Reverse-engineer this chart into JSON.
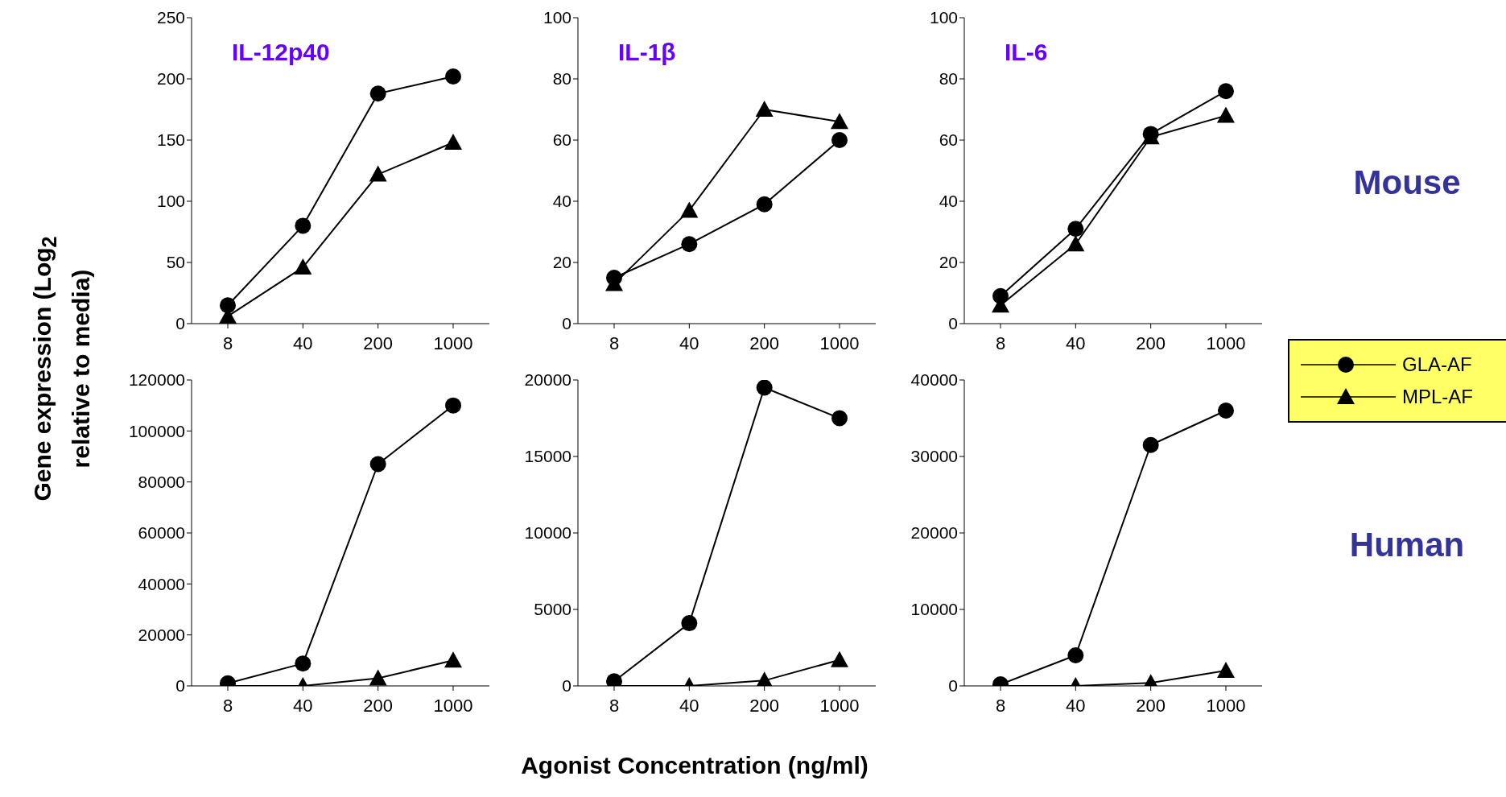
{
  "chart_data": [
    {
      "type": "line",
      "title": "IL-12p40",
      "ylabel": "Gene expression (Log$_{2}$ relative to media)",
      "categories": [
        "8",
        "40",
        "200",
        "1000"
      ],
      "ylim": [
        0,
        250
      ],
      "yticks": [
        0,
        50,
        100,
        150,
        200,
        250
      ],
      "grid": false,
      "line_style": "solid",
      "series": [
        {
          "color": "#000000",
          "marker": "circle",
          "values": [
            15,
            80,
            188,
            202
          ]
        },
        {
          "color": "#000000",
          "marker": "triangle",
          "values": [
            6,
            46,
            122,
            148
          ]
        }
      ]
    },
    {
      "type": "line",
      "title": "IL-1β",
      "categories": [
        "8",
        "40",
        "200",
        "1000"
      ],
      "ylim": [
        0,
        100
      ],
      "yticks": [
        0,
        20,
        40,
        60,
        80,
        100
      ],
      "grid": false,
      "line_style": "solid",
      "series": [
        {
          "color": "#000000",
          "marker": "circle",
          "values": [
            15,
            26,
            39,
            60
          ]
        },
        {
          "color": "#000000",
          "marker": "triangle",
          "values": [
            13,
            37,
            70,
            66
          ]
        }
      ]
    },
    {
      "type": "line",
      "title": "IL-6",
      "categories": [
        "8",
        "40",
        "200",
        "1000"
      ],
      "ylim": [
        0,
        100
      ],
      "yticks": [
        0,
        20,
        40,
        60,
        80,
        100
      ],
      "grid": false,
      "line_style": "solid",
      "legend": "right",
      "annotations": [
        "Mouse"
      ],
      "series": [
        {
          "name": "GLA-AF",
          "color": "#000000",
          "marker": "circle",
          "values": [
            9,
            31,
            62,
            76
          ]
        },
        {
          "name": "MPL-AF",
          "color": "#000000",
          "marker": "triangle",
          "values": [
            6,
            26,
            61,
            68
          ]
        }
      ]
    },
    {
      "type": "line",
      "categories": [
        "8",
        "40",
        "200",
        "1000"
      ],
      "ylim": [
        0,
        120000
      ],
      "yticks": [
        0,
        20000,
        40000,
        60000,
        80000,
        100000,
        120000
      ],
      "grid": false,
      "line_style": "solid",
      "series": [
        {
          "color": "#000000",
          "marker": "circle",
          "values": [
            1000,
            8800,
            87000,
            110000
          ]
        },
        {
          "color": "#000000",
          "marker": "triangle",
          "values": [
            0,
            0,
            3000,
            10000
          ]
        }
      ]
    },
    {
      "type": "line",
      "xlabel": "Agonist Concentration (ng/ml)",
      "categories": [
        "8",
        "40",
        "200",
        "1000"
      ],
      "ylim": [
        0,
        20000
      ],
      "yticks": [
        0,
        5000,
        10000,
        15000,
        20000
      ],
      "grid": false,
      "line_style": "solid",
      "series": [
        {
          "color": "#000000",
          "marker": "circle",
          "values": [
            300,
            4100,
            19500,
            17500
          ]
        },
        {
          "color": "#000000",
          "marker": "triangle",
          "values": [
            0,
            0,
            350,
            1700
          ]
        }
      ]
    },
    {
      "type": "line",
      "categories": [
        "8",
        "40",
        "200",
        "1000"
      ],
      "ylim": [
        0,
        40000
      ],
      "yticks": [
        0,
        10000,
        20000,
        30000,
        40000
      ],
      "grid": false,
      "line_style": "solid",
      "annotations": [
        "Human"
      ],
      "series": [
        {
          "color": "#000000",
          "marker": "circle",
          "values": [
            200,
            4000,
            31500,
            36000
          ]
        },
        {
          "color": "#000000",
          "marker": "triangle",
          "values": [
            0,
            0,
            400,
            2000
          ]
        }
      ]
    }
  ]
}
